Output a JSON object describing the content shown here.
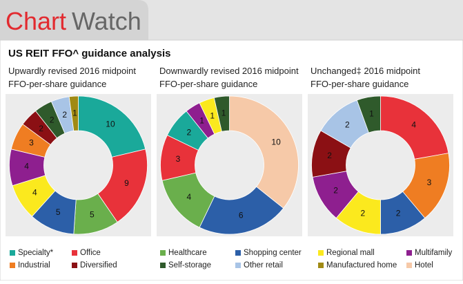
{
  "header": {
    "title_part1": "Chart",
    "title_part2": "Watch"
  },
  "title": "US REIT FFO^ guidance analysis",
  "legend": [
    {
      "name": "Specialty*",
      "color": "#1aa99a"
    },
    {
      "name": "Office",
      "color": "#e8323a"
    },
    {
      "name": "Healthcare",
      "color": "#6aaf4c"
    },
    {
      "name": "Shopping center",
      "color": "#2c5fa8"
    },
    {
      "name": "Regional mall",
      "color": "#fbe91e"
    },
    {
      "name": "Multifamily",
      "color": "#8e1f8f"
    },
    {
      "name": "Industrial",
      "color": "#ef7d22"
    },
    {
      "name": "Diversified",
      "color": "#8b1014"
    },
    {
      "name": "Self-storage",
      "color": "#2f5a2b"
    },
    {
      "name": "Other retail",
      "color": "#a8c4e6"
    },
    {
      "name": "Manufactured home",
      "color": "#a08a14"
    },
    {
      "name": "Hotel",
      "color": "#f6c9a8"
    }
  ],
  "chart_data": [
    {
      "type": "donut",
      "title": "Upwardly revised 2016 midpoint FFO-per-share guidance",
      "categories": [
        "Specialty*",
        "Office",
        "Healthcare",
        "Shopping center",
        "Regional mall",
        "Multifamily",
        "Industrial",
        "Diversified",
        "Self-storage",
        "Other retail",
        "Manufactured home"
      ],
      "values": [
        10,
        9,
        5,
        5,
        4,
        4,
        3,
        2,
        2,
        2,
        1
      ]
    },
    {
      "type": "donut",
      "title": "Downwardly revised 2016 midpoint FFO-per-share guidance",
      "categories": [
        "Hotel",
        "Shopping center",
        "Healthcare",
        "Office",
        "Specialty*",
        "Multifamily",
        "Regional mall",
        "Self-storage"
      ],
      "values": [
        10,
        6,
        4,
        3,
        2,
        1,
        1,
        1
      ]
    },
    {
      "type": "donut",
      "title": "Unchanged‡ 2016 midpoint FFO-per-share guidance",
      "categories": [
        "Office",
        "Industrial",
        "Shopping center",
        "Regional mall",
        "Multifamily",
        "Diversified",
        "Other retail",
        "Self-storage"
      ],
      "values": [
        4,
        3,
        2,
        2,
        2,
        2,
        2,
        1
      ]
    }
  ]
}
